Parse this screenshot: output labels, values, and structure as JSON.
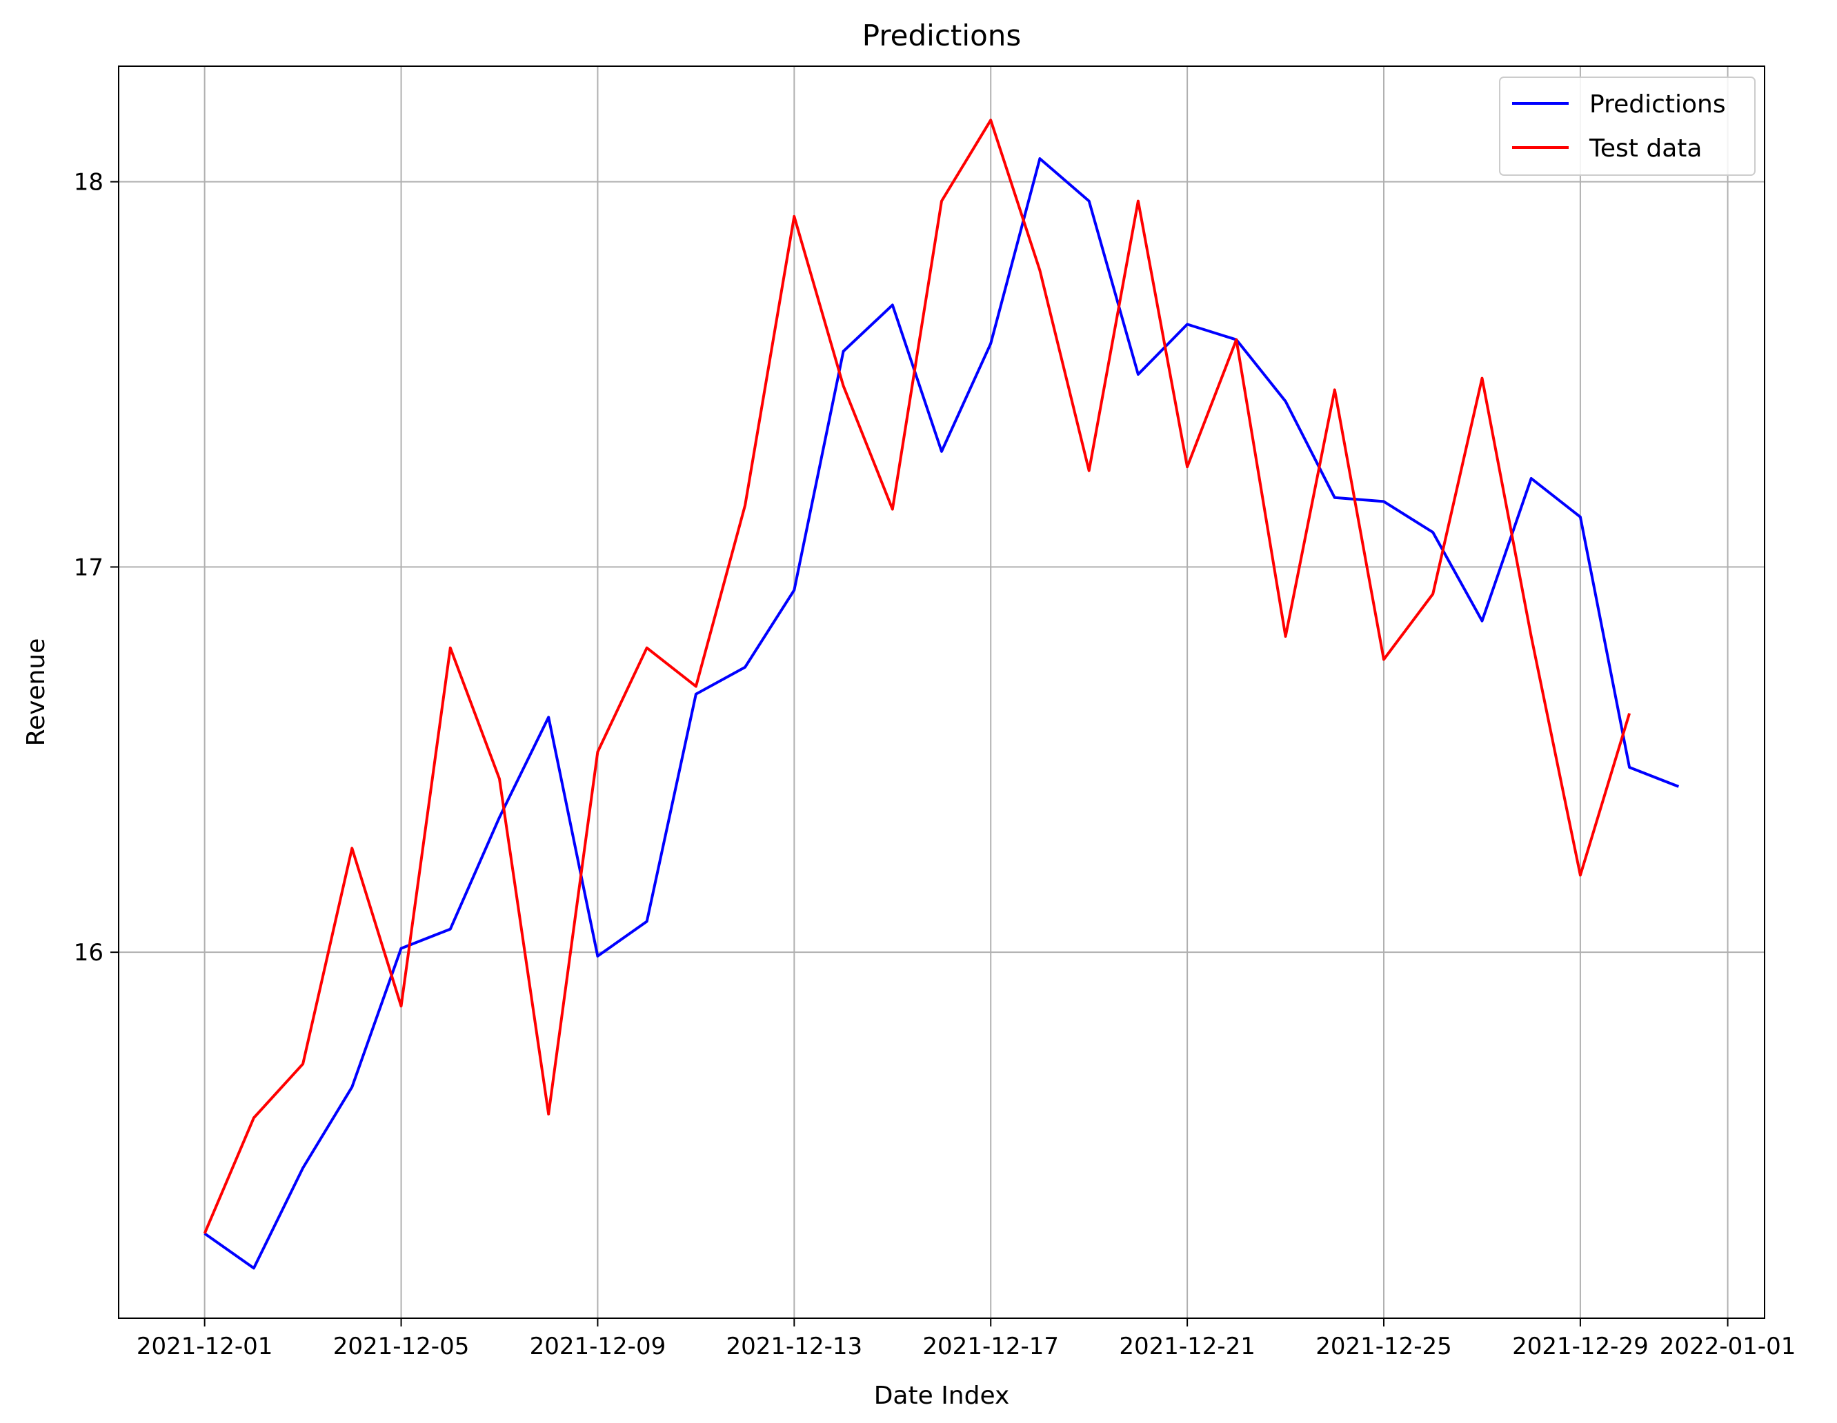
{
  "chart_data": {
    "type": "line",
    "title": "Predictions",
    "xlabel": "Date Index",
    "ylabel": "Revenue",
    "x_ticks": [
      "2021-12-01",
      "2021-12-05",
      "2021-12-09",
      "2021-12-13",
      "2021-12-17",
      "2021-12-21",
      "2021-12-25",
      "2021-12-29",
      "2022-01-01"
    ],
    "y_ticks": [
      16,
      17,
      18
    ],
    "ylim": [
      15.05,
      18.3
    ],
    "xlim": [
      "2021-11-29",
      "2022-01-01"
    ],
    "grid": true,
    "legend_position": "top-right",
    "series": [
      {
        "name": "Predictions",
        "color": "#0000ff",
        "x": [
          "2021-12-01",
          "2021-12-02",
          "2021-12-03",
          "2021-12-04",
          "2021-12-05",
          "2021-12-06",
          "2021-12-07",
          "2021-12-08",
          "2021-12-09",
          "2021-12-10",
          "2021-12-11",
          "2021-12-12",
          "2021-12-13",
          "2021-12-14",
          "2021-12-15",
          "2021-12-16",
          "2021-12-17",
          "2021-12-18",
          "2021-12-19",
          "2021-12-20",
          "2021-12-21",
          "2021-12-22",
          "2021-12-23",
          "2021-12-24",
          "2021-12-25",
          "2021-12-26",
          "2021-12-27",
          "2021-12-28",
          "2021-12-29",
          "2021-12-30",
          "2021-12-31"
        ],
        "values": [
          15.27,
          15.18,
          15.44,
          15.65,
          16.01,
          16.06,
          16.35,
          16.61,
          15.99,
          16.08,
          16.67,
          16.74,
          16.94,
          17.56,
          17.68,
          17.3,
          17.58,
          18.06,
          17.95,
          17.5,
          17.63,
          17.59,
          17.43,
          17.18,
          17.17,
          17.09,
          16.86,
          17.23,
          17.13,
          16.48,
          16.43
        ]
      },
      {
        "name": "Test data",
        "color": "#ff0000",
        "x": [
          "2021-12-01",
          "2021-12-02",
          "2021-12-03",
          "2021-12-04",
          "2021-12-05",
          "2021-12-06",
          "2021-12-07",
          "2021-12-08",
          "2021-12-09",
          "2021-12-10",
          "2021-12-11",
          "2021-12-12",
          "2021-12-13",
          "2021-12-14",
          "2021-12-15",
          "2021-12-16",
          "2021-12-17",
          "2021-12-18",
          "2021-12-19",
          "2021-12-20",
          "2021-12-21",
          "2021-12-22",
          "2021-12-23",
          "2021-12-24",
          "2021-12-25",
          "2021-12-26",
          "2021-12-27",
          "2021-12-28",
          "2021-12-29",
          "2021-12-30"
        ],
        "values": [
          15.27,
          15.57,
          15.71,
          16.27,
          15.86,
          16.79,
          16.45,
          15.58,
          16.52,
          16.79,
          16.69,
          17.16,
          17.91,
          17.47,
          17.15,
          17.95,
          18.16,
          17.77,
          17.25,
          17.95,
          17.26,
          17.59,
          16.82,
          17.46,
          16.76,
          16.93,
          17.49,
          16.82,
          16.2,
          16.62
        ]
      }
    ]
  }
}
